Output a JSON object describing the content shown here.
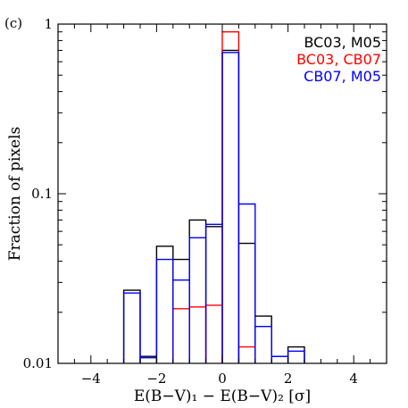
{
  "chart_data": {
    "type": "step",
    "panel_label": "(c)",
    "xlabel": "E(B−V)₁ − E(B−V)₂ [σ]",
    "ylabel": "Fraction of pixels",
    "xlim": [
      -5,
      5
    ],
    "ylim": [
      0.01,
      1
    ],
    "yscale": "log",
    "grid": false,
    "legend_position": "top-right",
    "x_ticks": [
      -4,
      -2,
      0,
      2,
      4
    ],
    "x_tick_labels": [
      "−4",
      "−2",
      "0",
      "2",
      "4"
    ],
    "y_tick_labels": [
      {
        "value": 1,
        "label": "1"
      },
      {
        "value": 0.1,
        "label": "0.1"
      },
      {
        "value": 0.01,
        "label": "0.01"
      }
    ],
    "series": [
      {
        "name": "BC03, M05",
        "color": "#000000",
        "bin_edges": [
          -3,
          -2.5,
          -2,
          -1.5,
          -1,
          -0.5,
          0,
          0.5,
          1,
          1.5,
          2,
          2.5
        ],
        "values": [
          0.027,
          0.011,
          0.049,
          0.041,
          0.07,
          0.064,
          0.7,
          0.051,
          0.019,
          0.011,
          0.0125
        ]
      },
      {
        "name": "BC03, CB07",
        "color": "#ff0000",
        "bin_edges": [
          -1.5,
          -1,
          -0.5,
          0,
          0.5,
          1
        ],
        "values": [
          0.021,
          0.0215,
          0.022,
          0.9,
          0.0125
        ]
      },
      {
        "name": "CB07, M05",
        "color": "#0000ff",
        "bin_edges": [
          -3,
          -2.5,
          -2,
          -1.5,
          -1,
          -0.5,
          0,
          0.5,
          1,
          1.5,
          2,
          2.5
        ],
        "values": [
          0.026,
          0.0108,
          0.041,
          0.031,
          0.055,
          0.066,
          0.68,
          0.087,
          0.0165,
          0.011,
          0.0118
        ]
      }
    ]
  }
}
